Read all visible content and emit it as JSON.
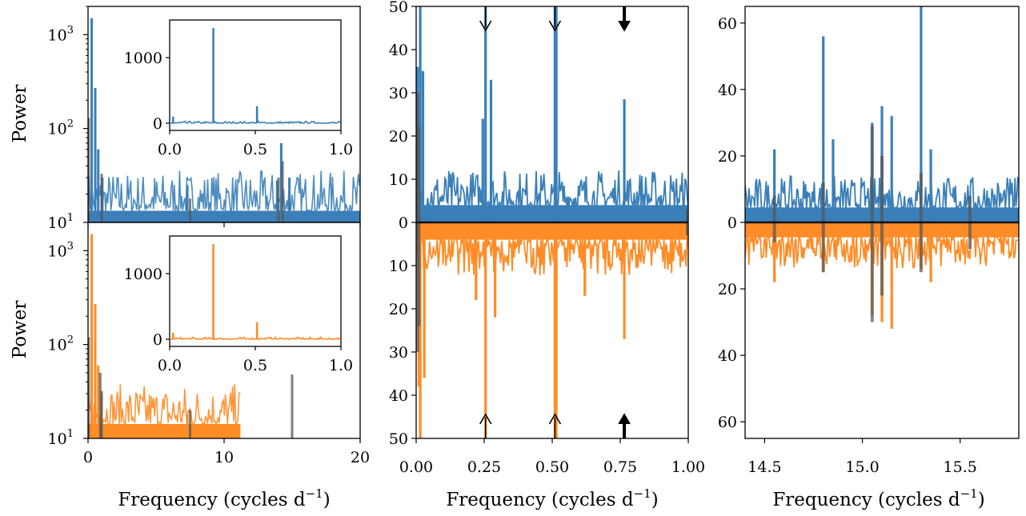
{
  "figure": {
    "ylabel": "Power",
    "xlabel": "Frequency (cycles d",
    "xlabel_sup": "−1",
    "xlabel_close": ")"
  },
  "colors": {
    "blue": "#3a7fb8",
    "orange": "#ff8c26",
    "gray": "#555555",
    "axis": "#000000"
  },
  "chart_data": [
    {
      "id": "left-top",
      "type": "line",
      "yscale": "log",
      "xlim": [
        0,
        20
      ],
      "ylim": [
        10,
        2000
      ],
      "ytick_labels": [
        "10",
        "10",
        "10"
      ],
      "ytick_sups": [
        "1",
        "2",
        "3"
      ],
      "ytick_values": [
        10,
        100,
        1000
      ],
      "series": [
        {
          "color": "blue",
          "baseline": 14,
          "noise_to_x": 20,
          "peaks": [
            [
              0.27,
              1500
            ],
            [
              0.53,
              270
            ],
            [
              0.75,
              60
            ],
            [
              1.05,
              30
            ],
            [
              7.3,
              25
            ],
            [
              13.9,
              28
            ],
            [
              14.2,
              70
            ],
            [
              14.8,
              30
            ]
          ]
        },
        {
          "color": "gray",
          "peaks": [
            [
              0.05,
              130
            ],
            [
              1.0,
              33
            ],
            [
              7.5,
              18
            ],
            [
              14.0,
              30
            ],
            [
              14.3,
              45
            ]
          ]
        }
      ],
      "inset": {
        "xlim": [
          0,
          1.0
        ],
        "ylim": [
          0,
          1500
        ],
        "xtick_labels": [
          "0.0",
          "0.5",
          "1.0"
        ],
        "xtick_values": [
          0,
          0.5,
          1.0
        ],
        "ytick_labels": [
          "0",
          "1000"
        ],
        "ytick_values": [
          0,
          1000
        ],
        "peaks": [
          [
            0.02,
            100
          ],
          [
            0.255,
            1450
          ],
          [
            0.51,
            260
          ],
          [
            0.76,
            25
          ]
        ],
        "color": "blue"
      }
    },
    {
      "id": "left-bottom",
      "type": "line",
      "yscale": "log",
      "xlim": [
        0,
        20
      ],
      "ylim": [
        10,
        2000
      ],
      "ytick_labels": [
        "10",
        "10",
        "10"
      ],
      "ytick_sups": [
        "1",
        "2",
        "3"
      ],
      "ytick_values": [
        10,
        100,
        1000
      ],
      "xtick_labels": [
        "0",
        "10",
        "20"
      ],
      "xtick_values": [
        0,
        10,
        20
      ],
      "series": [
        {
          "color": "orange",
          "baseline": 15,
          "noise_to_x": 11.2,
          "peaks": [
            [
              0.27,
              1500
            ],
            [
              0.53,
              270
            ],
            [
              0.75,
              60
            ],
            [
              1.0,
              30
            ],
            [
              7.3,
              18
            ]
          ]
        },
        {
          "color": "gray",
          "peaks": [
            [
              0.05,
              120
            ],
            [
              0.9,
              50
            ],
            [
              1.0,
              32
            ],
            [
              7.5,
              20
            ],
            [
              15.0,
              48
            ]
          ]
        }
      ],
      "inset": {
        "xlim": [
          0,
          1.0
        ],
        "ylim": [
          0,
          1500
        ],
        "xtick_labels": [
          "0.0",
          "0.5",
          "1.0"
        ],
        "xtick_values": [
          0,
          0.5,
          1.0
        ],
        "ytick_labels": [
          "0",
          "1000"
        ],
        "ytick_values": [
          0,
          1000
        ],
        "peaks": [
          [
            0.02,
            100
          ],
          [
            0.255,
            1450
          ],
          [
            0.51,
            260
          ],
          [
            0.76,
            20
          ]
        ],
        "color": "orange"
      }
    },
    {
      "id": "middle",
      "type": "line",
      "xlim": [
        0.0,
        1.0
      ],
      "ylim": [
        -50,
        50
      ],
      "xtick_labels": [
        "0.00",
        "0.25",
        "0.50",
        "0.75",
        "1.00"
      ],
      "xtick_values": [
        0,
        0.25,
        0.5,
        0.75,
        1.0
      ],
      "ytick_labels_top": [
        "0",
        "10",
        "20",
        "30",
        "40",
        "50"
      ],
      "ytick_values_top": [
        0,
        10,
        20,
        30,
        40,
        50
      ],
      "ytick_labels_bottom": [
        "10",
        "20",
        "30",
        "40",
        "50"
      ],
      "ytick_values_bottom": [
        -10,
        -20,
        -30,
        -40,
        -50
      ],
      "top_series": {
        "color": "blue",
        "baseline": 8,
        "peaks": [
          [
            0.005,
            36
          ],
          [
            0.015,
            60
          ],
          [
            0.025,
            35
          ],
          [
            0.245,
            24
          ],
          [
            0.255,
            60
          ],
          [
            0.275,
            33
          ],
          [
            0.51,
            60
          ],
          [
            0.515,
            60
          ],
          [
            0.765,
            28.5
          ]
        ]
      },
      "bottom_series": {
        "color": "orange",
        "baseline": 8,
        "peaks": [
          [
            0.01,
            38
          ],
          [
            0.015,
            60
          ],
          [
            0.03,
            36
          ],
          [
            0.22,
            18
          ],
          [
            0.255,
            60
          ],
          [
            0.29,
            22
          ],
          [
            0.51,
            60
          ],
          [
            0.515,
            60
          ],
          [
            0.62,
            17
          ],
          [
            0.765,
            27
          ]
        ]
      },
      "gray_series": {
        "peaks": [
          [
            0.005,
            30
          ],
          [
            0.01,
            22
          ],
          [
            0.997,
            3
          ]
        ],
        "bottom_peaks": [
          [
            0.005,
            30
          ],
          [
            0.01,
            24
          ],
          [
            0.997,
            3
          ]
        ]
      },
      "arrows_x": [
        0.255,
        0.51,
        0.765
      ]
    },
    {
      "id": "right",
      "type": "line",
      "xlim": [
        14.4,
        15.8
      ],
      "ylim": [
        -65,
        65
      ],
      "xtick_labels": [
        "14.5",
        "15.0",
        "15.5"
      ],
      "xtick_values": [
        14.5,
        15.0,
        15.5
      ],
      "ytick_labels_top": [
        "0",
        "20",
        "40",
        "60"
      ],
      "ytick_values_top": [
        0,
        20,
        40,
        60
      ],
      "ytick_labels_bottom": [
        "20",
        "40",
        "60"
      ],
      "ytick_values_bottom": [
        -20,
        -40,
        -60
      ],
      "top_series": {
        "color": "blue",
        "baseline": 9,
        "peaks": [
          [
            14.55,
            22
          ],
          [
            14.8,
            56
          ],
          [
            14.85,
            25
          ],
          [
            15.05,
            30
          ],
          [
            15.1,
            35
          ],
          [
            15.15,
            32
          ],
          [
            15.3,
            65
          ],
          [
            15.35,
            22
          ]
        ]
      },
      "bottom_series": {
        "color": "orange",
        "baseline": 9,
        "peaks": [
          [
            14.55,
            18
          ],
          [
            14.8,
            15
          ],
          [
            15.05,
            28
          ],
          [
            15.1,
            30
          ],
          [
            15.15,
            32
          ],
          [
            15.3,
            14
          ],
          [
            15.35,
            18
          ]
        ]
      },
      "gray_series": {
        "peaks": [
          [
            14.55,
            8
          ],
          [
            14.8,
            12
          ],
          [
            15.05,
            29
          ],
          [
            15.1,
            20
          ],
          [
            15.3,
            15
          ],
          [
            15.55,
            8
          ]
        ],
        "bottom_peaks": [
          [
            14.55,
            6
          ],
          [
            14.8,
            15
          ],
          [
            15.05,
            30
          ],
          [
            15.1,
            22
          ],
          [
            15.3,
            15
          ],
          [
            15.55,
            8
          ]
        ]
      }
    }
  ]
}
